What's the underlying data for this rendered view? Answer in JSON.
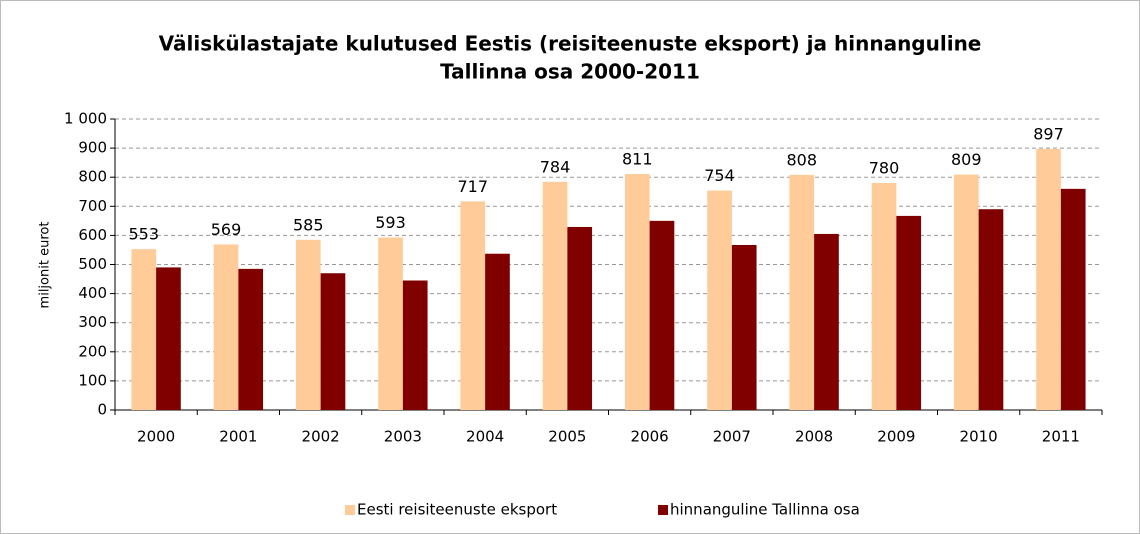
{
  "chart_data": {
    "type": "bar",
    "title": "Väliskülastajate kulutused Eestis (reisiteenuste eksport) ja hinnanguline",
    "subtitle": "Tallinna osa 2000-2011",
    "y_label": "miljonit eurot",
    "categories": [
      "2000",
      "2001",
      "2002",
      "2003",
      "2004",
      "2005",
      "2006",
      "2007",
      "2008",
      "2009",
      "2010",
      "2011"
    ],
    "series": [
      {
        "name": "Eesti reisiteenuste eksport",
        "color": "#ffcc99",
        "show_labels": true,
        "values": [
          553,
          569,
          585,
          593,
          717,
          784,
          811,
          754,
          808,
          780,
          809,
          897
        ]
      },
      {
        "name": "hinnanguline Tallinna osa",
        "color": "#800000",
        "show_labels": false,
        "values": [
          490,
          485,
          470,
          445,
          537,
          629,
          650,
          567,
          605,
          667,
          690,
          760
        ]
      }
    ],
    "ylim": [
      0,
      1000
    ],
    "yticks": [
      0,
      100,
      200,
      300,
      400,
      500,
      600,
      700,
      800,
      900,
      {
        "value": 1000,
        "label": "1 000"
      }
    ],
    "grid": true,
    "legend": "bottom"
  }
}
